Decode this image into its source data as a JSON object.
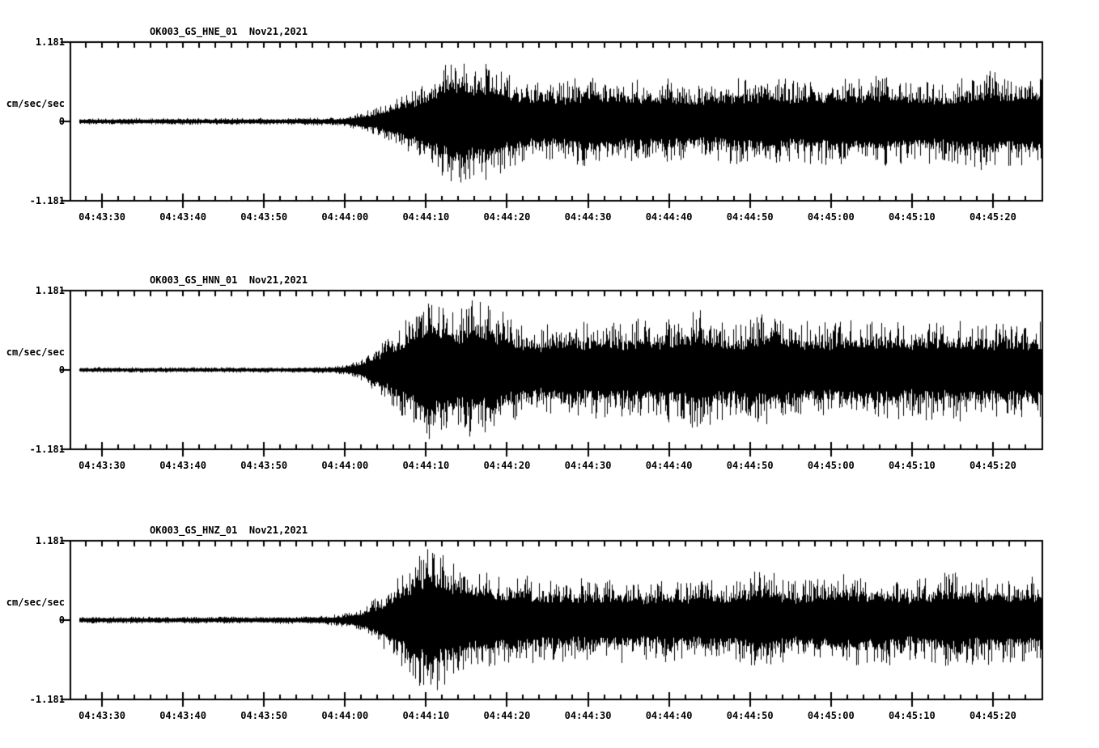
{
  "figure": {
    "background_color": "#ffffff",
    "trace_color": "#000000",
    "text_color": "#000000"
  },
  "time_axis": {
    "start_time": "04:43:26",
    "end_time": "04:45:26",
    "duration_seconds": 120,
    "first_tick_offset_seconds": 4,
    "tick_interval_seconds": 10,
    "minor_tick_interval_seconds": 2,
    "tick_labels": [
      "04:43:30",
      "04:43:40",
      "04:43:50",
      "04:44:00",
      "04:44:10",
      "04:44:20",
      "04:44:30",
      "04:44:40",
      "04:44:50",
      "04:45:00",
      "04:45:10",
      "04:45:20"
    ]
  },
  "y_axis": {
    "max_label": "1.181",
    "zero_label": "0",
    "min_label": "-1.181",
    "unit_label": "cm/sec/sec"
  },
  "chart_data": {
    "type": "line",
    "subtype": "seismogram-waveform",
    "date": "Nov21,2021",
    "y_units": "cm/sec/sec",
    "y_range": [
      -1.181,
      1.181
    ],
    "x_start": "04:43:26",
    "x_end": "04:45:26",
    "event_onset_time": "04:44:01",
    "envelope_sample_interval_seconds": 2,
    "series": [
      {
        "name": "OK003_GS_HNE_01",
        "title": "OK003_GS_HNE_01  Nov21,2021",
        "peak_amplitude": 1.0,
        "peak_time": "04:44:14",
        "envelope": [
          0.047,
          0.047,
          0.047,
          0.047,
          0.053,
          0.047,
          0.047,
          0.053,
          0.047,
          0.047,
          0.053,
          0.047,
          0.053,
          0.047,
          0.053,
          0.059,
          0.059,
          0.071,
          0.142,
          0.213,
          0.354,
          0.472,
          0.65,
          0.85,
          1.004,
          0.921,
          0.945,
          0.732,
          0.65,
          0.591,
          0.567,
          0.65,
          0.709,
          0.591,
          0.614,
          0.65,
          0.591,
          0.65,
          0.591,
          0.543,
          0.591,
          0.65,
          0.65,
          0.709,
          0.65,
          0.591,
          0.65,
          0.709,
          0.709,
          0.65,
          0.709,
          0.65,
          0.591,
          0.65,
          0.591,
          0.65,
          0.709,
          0.768,
          0.709,
          0.709,
          0.709
        ]
      },
      {
        "name": "OK003_GS_HNN_01",
        "title": "OK003_GS_HNN_01  Nov21,2021",
        "peak_amplitude": 1.1,
        "peak_time": "04:44:10",
        "envelope": [
          0.041,
          0.041,
          0.041,
          0.041,
          0.041,
          0.041,
          0.041,
          0.041,
          0.041,
          0.041,
          0.041,
          0.041,
          0.041,
          0.041,
          0.047,
          0.047,
          0.053,
          0.071,
          0.165,
          0.354,
          0.591,
          0.827,
          1.098,
          1.004,
          0.945,
          1.063,
          1.004,
          0.827,
          0.709,
          0.65,
          0.732,
          0.779,
          0.709,
          0.768,
          0.709,
          0.768,
          0.709,
          0.803,
          0.827,
          0.945,
          0.768,
          0.709,
          0.768,
          0.85,
          0.768,
          0.709,
          0.768,
          0.709,
          0.768,
          0.709,
          0.779,
          0.768,
          0.709,
          0.768,
          0.709,
          0.768,
          0.709,
          0.709,
          0.768,
          0.709,
          0.732
        ]
      },
      {
        "name": "OK003_GS_HNZ_01",
        "title": "OK003_GS_HNZ_01  Nov21,2021",
        "peak_amplitude": 1.15,
        "peak_time": "04:44:09",
        "envelope": [
          0.053,
          0.053,
          0.053,
          0.053,
          0.053,
          0.053,
          0.053,
          0.053,
          0.053,
          0.053,
          0.053,
          0.053,
          0.053,
          0.059,
          0.059,
          0.065,
          0.077,
          0.106,
          0.177,
          0.354,
          0.591,
          0.886,
          1.146,
          1.063,
          0.827,
          0.732,
          0.709,
          0.65,
          0.709,
          0.591,
          0.65,
          0.591,
          0.65,
          0.591,
          0.65,
          0.591,
          0.591,
          0.65,
          0.591,
          0.591,
          0.65,
          0.591,
          0.709,
          0.827,
          0.65,
          0.591,
          0.65,
          0.65,
          0.709,
          0.65,
          0.709,
          0.65,
          0.591,
          0.65,
          0.709,
          0.709,
          0.65,
          0.709,
          0.65,
          0.65,
          0.65
        ]
      }
    ]
  }
}
